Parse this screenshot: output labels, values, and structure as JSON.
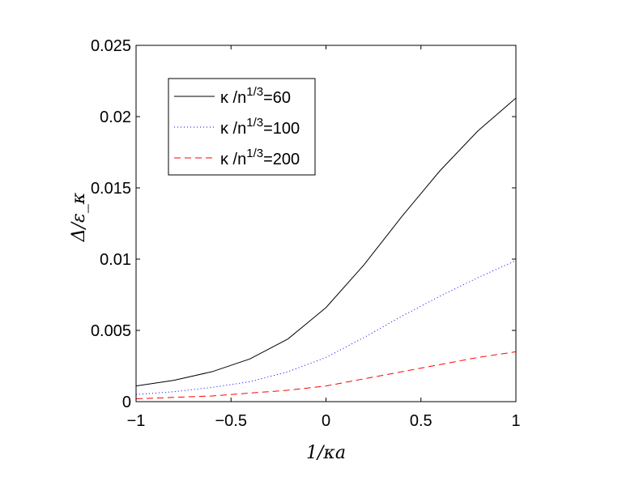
{
  "chart_data": {
    "type": "line",
    "xlabel": "1/κa",
    "ylabel": "Δ/ε_κ",
    "xlim": [
      -1,
      1
    ],
    "ylim": [
      0,
      0.025
    ],
    "xticks": [
      -1,
      -0.5,
      0,
      0.5,
      1
    ],
    "xtick_labels": [
      "−1",
      "−0.5",
      "0",
      "0.5",
      "1"
    ],
    "yticks": [
      0,
      0.005,
      0.01,
      0.015,
      0.02,
      0.025
    ],
    "ytick_labels": [
      "0",
      "0.005",
      "0.01",
      "0.015",
      "0.02",
      "0.025"
    ],
    "grid": false,
    "legend_position": "top-left",
    "x": [
      -1,
      -0.8,
      -0.6,
      -0.4,
      -0.2,
      0,
      0.2,
      0.4,
      0.6,
      0.8,
      1
    ],
    "series": [
      {
        "name": "κ /n^{1/3}=60",
        "legend_main": "κ /n",
        "legend_sup": "1/3",
        "legend_tail": "=60",
        "color": "#000000",
        "dash": "solid",
        "values": [
          0.0011,
          0.0015,
          0.0021,
          0.003,
          0.0044,
          0.0066,
          0.0096,
          0.013,
          0.0162,
          0.019,
          0.0213
        ]
      },
      {
        "name": "κ /n^{1/3}=100",
        "legend_main": "κ /n",
        "legend_sup": "1/3",
        "legend_tail": "=100",
        "color": "#0000ff",
        "dash": "dotted",
        "values": [
          0.0005,
          0.0007,
          0.001,
          0.0014,
          0.0021,
          0.0031,
          0.0045,
          0.006,
          0.0074,
          0.0087,
          0.0099
        ]
      },
      {
        "name": "κ /n^{1/3}=200",
        "legend_main": "κ /n",
        "legend_sup": "1/3",
        "legend_tail": "=200",
        "color": "#ff0000",
        "dash": "dashed",
        "values": [
          0.0002,
          0.0003,
          0.0004,
          0.0006,
          0.0008,
          0.0011,
          0.0016,
          0.0021,
          0.0026,
          0.0031,
          0.0035
        ]
      }
    ]
  }
}
